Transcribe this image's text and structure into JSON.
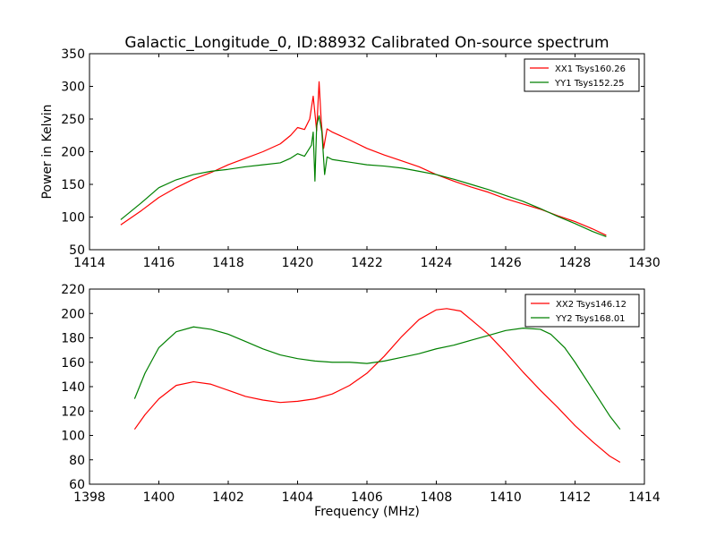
{
  "chart_data": [
    {
      "type": "line",
      "title": "Galactic_Longitude_0, ID:88932 Calibrated On-source spectrum",
      "xlabel": "",
      "ylabel": "Power in Kelvin",
      "xlim": [
        1414,
        1430
      ],
      "ylim": [
        50,
        350
      ],
      "xticks": [
        1414,
        1416,
        1418,
        1420,
        1422,
        1424,
        1426,
        1428,
        1430
      ],
      "yticks": [
        50,
        100,
        150,
        200,
        250,
        300,
        350
      ],
      "grid": false,
      "legend_position": "top-right",
      "series": [
        {
          "name": "XX1 Tsys160.26",
          "color": "#ff0000",
          "x": [
            1414.9,
            1415.5,
            1416,
            1416.5,
            1417,
            1417.5,
            1418,
            1418.5,
            1419,
            1419.5,
            1419.8,
            1420,
            1420.2,
            1420.35,
            1420.45,
            1420.55,
            1420.62,
            1420.68,
            1420.75,
            1420.85,
            1421,
            1421.5,
            1422,
            1422.5,
            1423,
            1423.5,
            1424,
            1424.5,
            1425,
            1425.5,
            1426,
            1426.5,
            1427,
            1427.5,
            1428,
            1428.5,
            1428.9
          ],
          "values": [
            88,
            110,
            130,
            145,
            158,
            168,
            180,
            190,
            200,
            212,
            225,
            237,
            234,
            250,
            285,
            232,
            307,
            248,
            205,
            235,
            230,
            218,
            205,
            195,
            186,
            177,
            165,
            155,
            146,
            138,
            128,
            120,
            112,
            102,
            93,
            82,
            72
          ]
        },
        {
          "name": "YY1 Tsys152.25",
          "color": "#008000",
          "x": [
            1414.9,
            1415.5,
            1416,
            1416.5,
            1417,
            1417.5,
            1418,
            1418.5,
            1419,
            1419.5,
            1419.8,
            1420,
            1420.2,
            1420.4,
            1420.45,
            1420.5,
            1420.55,
            1420.62,
            1420.7,
            1420.78,
            1420.85,
            1421,
            1421.5,
            1422,
            1422.5,
            1423,
            1423.5,
            1424,
            1424.5,
            1425,
            1425.5,
            1426,
            1426.5,
            1427,
            1427.5,
            1428,
            1428.5,
            1428.9
          ],
          "values": [
            96,
            122,
            145,
            157,
            165,
            170,
            173,
            177,
            180,
            183,
            190,
            197,
            193,
            210,
            230,
            155,
            240,
            255,
            230,
            165,
            192,
            188,
            184,
            180,
            178,
            175,
            170,
            165,
            158,
            150,
            142,
            133,
            124,
            113,
            101,
            90,
            78,
            70
          ]
        }
      ]
    },
    {
      "type": "line",
      "title": "",
      "xlabel": "Frequency (MHz)",
      "ylabel": "",
      "xlim": [
        1398,
        1414
      ],
      "ylim": [
        60,
        220
      ],
      "xticks": [
        1398,
        1400,
        1402,
        1404,
        1406,
        1408,
        1410,
        1412,
        1414
      ],
      "yticks": [
        60,
        80,
        100,
        120,
        140,
        160,
        180,
        200,
        220
      ],
      "grid": false,
      "legend_position": "top-right",
      "series": [
        {
          "name": "XX2 Tsys146.12",
          "color": "#ff0000",
          "x": [
            1399.3,
            1399.6,
            1400,
            1400.5,
            1401,
            1401.5,
            1402,
            1402.5,
            1403,
            1403.5,
            1404,
            1404.5,
            1405,
            1405.5,
            1406,
            1406.5,
            1407,
            1407.5,
            1408,
            1408.3,
            1408.7,
            1409,
            1409.5,
            1410,
            1410.5,
            1411,
            1411.5,
            1412,
            1412.5,
            1413,
            1413.3
          ],
          "values": [
            105,
            117,
            130,
            141,
            144,
            142,
            137,
            132,
            129,
            127,
            128,
            130,
            134,
            141,
            151,
            165,
            181,
            195,
            203,
            204,
            202,
            195,
            183,
            168,
            152,
            137,
            123,
            108,
            95,
            83,
            78
          ]
        },
        {
          "name": "YY2 Tsys168.01",
          "color": "#008000",
          "x": [
            1399.3,
            1399.6,
            1400,
            1400.5,
            1401,
            1401.5,
            1402,
            1402.5,
            1403,
            1403.5,
            1404,
            1404.5,
            1405,
            1405.5,
            1406,
            1406.5,
            1407,
            1407.5,
            1408,
            1408.5,
            1409,
            1409.5,
            1410,
            1410.5,
            1411,
            1411.3,
            1411.7,
            1412,
            1412.5,
            1413,
            1413.3
          ],
          "values": [
            130,
            151,
            172,
            185,
            189,
            187,
            183,
            177,
            171,
            166,
            163,
            161,
            160,
            160,
            159,
            161,
            164,
            167,
            171,
            174,
            178,
            182,
            186,
            188,
            187,
            183,
            172,
            160,
            138,
            116,
            105
          ]
        }
      ]
    }
  ]
}
